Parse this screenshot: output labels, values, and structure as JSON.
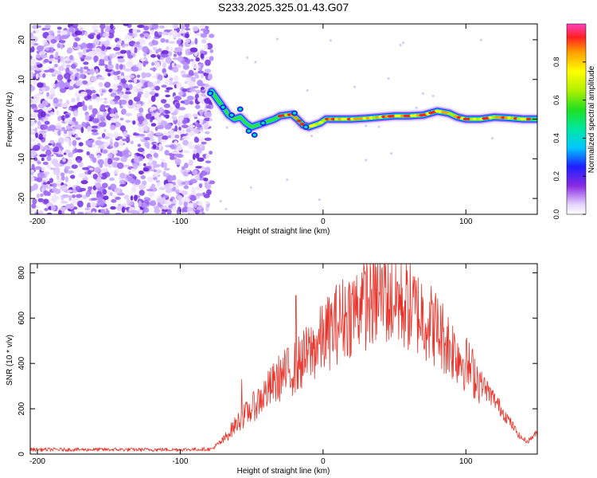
{
  "title": "S233.2025.325.01.43.G07",
  "chart_data": [
    {
      "type": "heatmap",
      "xlabel": "Height of straight line (km)",
      "ylabel": "Frequency (Hz)",
      "xlim": [
        -205,
        150
      ],
      "ylim": [
        -24,
        24
      ],
      "xticks": [
        -200,
        -100,
        0,
        100
      ],
      "yticks": [
        -20,
        -10,
        0,
        10,
        20
      ],
      "noise_region_x": [
        -205,
        -78
      ],
      "ridge": [
        {
          "x": -78,
          "y": 7
        },
        {
          "x": -74,
          "y": 5
        },
        {
          "x": -70,
          "y": 3
        },
        {
          "x": -66,
          "y": 1
        },
        {
          "x": -62,
          "y": 0
        },
        {
          "x": -58,
          "y": 0.5
        },
        {
          "x": -54,
          "y": -1
        },
        {
          "x": -50,
          "y": -2
        },
        {
          "x": -46,
          "y": -1.5
        },
        {
          "x": -42,
          "y": -1
        },
        {
          "x": -38,
          "y": -0.5
        },
        {
          "x": -34,
          "y": 0
        },
        {
          "x": -30,
          "y": 0.8
        },
        {
          "x": -26,
          "y": 1
        },
        {
          "x": -22,
          "y": 1.2
        },
        {
          "x": -18,
          "y": 0
        },
        {
          "x": -14,
          "y": -1.5
        },
        {
          "x": -10,
          "y": -2
        },
        {
          "x": -6,
          "y": -1.5
        },
        {
          "x": -2,
          "y": -1
        },
        {
          "x": 2,
          "y": 0
        },
        {
          "x": 10,
          "y": 0
        },
        {
          "x": 20,
          "y": 0
        },
        {
          "x": 30,
          "y": 0.2
        },
        {
          "x": 40,
          "y": 0.5
        },
        {
          "x": 50,
          "y": 0.8
        },
        {
          "x": 60,
          "y": 0.8
        },
        {
          "x": 70,
          "y": 1
        },
        {
          "x": 80,
          "y": 2
        },
        {
          "x": 88,
          "y": 1.5
        },
        {
          "x": 94,
          "y": 0.5
        },
        {
          "x": 100,
          "y": 0
        },
        {
          "x": 110,
          "y": 0
        },
        {
          "x": 120,
          "y": 0.5
        },
        {
          "x": 130,
          "y": 0.3
        },
        {
          "x": 140,
          "y": 0
        },
        {
          "x": 150,
          "y": 0
        }
      ],
      "colorbar": {
        "label": "Normalized spectral amplitude",
        "ticks": [
          0.0,
          0.2,
          0.4,
          0.6,
          0.8
        ],
        "range": [
          0,
          1
        ]
      }
    },
    {
      "type": "line",
      "xlabel": "Height of straight line (km)",
      "ylabel": "SNR (10 * v/v)",
      "xlim": [
        -205,
        150
      ],
      "ylim": [
        0,
        840
      ],
      "xticks": [
        -200,
        -100,
        0,
        100
      ],
      "yticks": [
        0,
        200,
        400,
        600,
        800
      ],
      "color": "#e8332a",
      "series": [
        {
          "name": "SNR",
          "envelope": [
            {
              "x": -205,
              "y": 20
            },
            {
              "x": -150,
              "y": 20
            },
            {
              "x": -100,
              "y": 20
            },
            {
              "x": -78,
              "y": 22
            },
            {
              "x": -70,
              "y": 60
            },
            {
              "x": -60,
              "y": 140
            },
            {
              "x": -50,
              "y": 200
            },
            {
              "x": -40,
              "y": 270
            },
            {
              "x": -30,
              "y": 340
            },
            {
              "x": -20,
              "y": 380
            },
            {
              "x": -10,
              "y": 440
            },
            {
              "x": 0,
              "y": 510
            },
            {
              "x": 10,
              "y": 580
            },
            {
              "x": 20,
              "y": 630
            },
            {
              "x": 30,
              "y": 670
            },
            {
              "x": 40,
              "y": 690
            },
            {
              "x": 50,
              "y": 680
            },
            {
              "x": 60,
              "y": 650
            },
            {
              "x": 70,
              "y": 610
            },
            {
              "x": 80,
              "y": 550
            },
            {
              "x": 90,
              "y": 470
            },
            {
              "x": 100,
              "y": 400
            },
            {
              "x": 110,
              "y": 320
            },
            {
              "x": 120,
              "y": 240
            },
            {
              "x": 130,
              "y": 150
            },
            {
              "x": 138,
              "y": 75
            },
            {
              "x": 143,
              "y": 55
            },
            {
              "x": 150,
              "y": 95
            }
          ],
          "peaks": [
            {
              "x": -57,
              "y": 330
            },
            {
              "x": -19,
              "y": 700
            },
            {
              "x": 27,
              "y": 800
            },
            {
              "x": 43,
              "y": 840
            },
            {
              "x": 52,
              "y": 760
            },
            {
              "x": 69,
              "y": 750
            }
          ]
        }
      ]
    }
  ]
}
